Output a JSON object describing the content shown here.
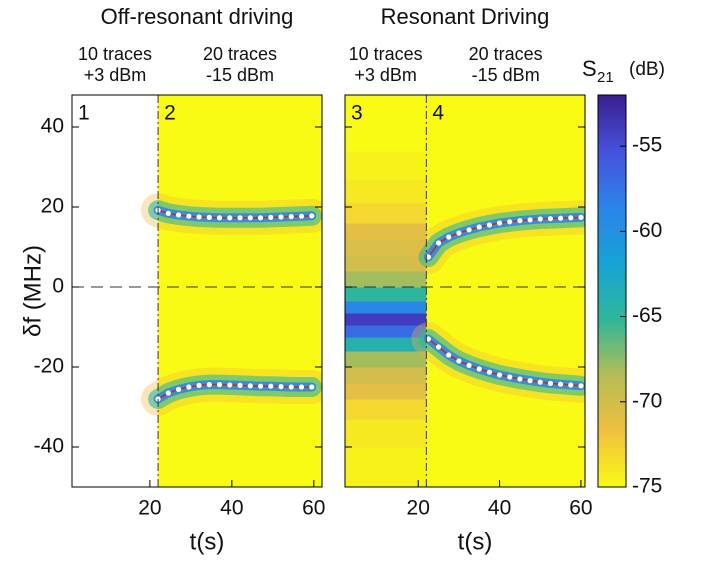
{
  "chart_data": [
    {
      "type": "heatmap",
      "title": "Off-resonant driving",
      "xlabel": "t(s)",
      "ylabel": "δf (MHz)",
      "xlim": [
        1,
        62
      ],
      "xticks": [
        20,
        40,
        60
      ],
      "ylim": [
        -50,
        48
      ],
      "yticks": [
        -40,
        -20,
        0,
        20,
        40
      ],
      "divider_x": 22,
      "hline": 0,
      "segments": [
        {
          "lines": [
            "10 traces",
            "+3 dBm"
          ],
          "panel": "1",
          "filled": false
        },
        {
          "lines": [
            "20 traces",
            "-15 dBm"
          ],
          "panel": "2",
          "filled": true
        }
      ],
      "band_colors": [
        "#f2b83a",
        "#2eb79a",
        "#2c84ea"
      ],
      "line_color": "#c0283c",
      "dot_color": "#ffffff",
      "series": [
        {
          "x": [
            22,
            24.5,
            27,
            29.5,
            32,
            34.5,
            37,
            39.5,
            42,
            44.5,
            47,
            49.5,
            52,
            54.5,
            57,
            59.5
          ],
          "values": [
            19.2,
            18.4,
            18,
            17.7,
            17.5,
            17.4,
            17.3,
            17.3,
            17.3,
            17.3,
            17.3,
            17.4,
            17.5,
            17.6,
            17.7,
            17.8
          ]
        },
        {
          "x": [
            22,
            24.5,
            27,
            29.5,
            32,
            34.5,
            37,
            39.5,
            42,
            44.5,
            47,
            49.5,
            52,
            54.5,
            57,
            59.5
          ],
          "values": [
            -28,
            -26.5,
            -25.6,
            -25,
            -24.6,
            -24.4,
            -24.4,
            -24.5,
            -24.6,
            -24.7,
            -24.8,
            -24.8,
            -24.9,
            -25,
            -25,
            -25
          ]
        }
      ]
    },
    {
      "type": "heatmap",
      "title": "Resonant Driving",
      "xlabel": "t(s)",
      "xlim": [
        2,
        61
      ],
      "xticks": [
        20,
        40,
        60
      ],
      "ylim": [
        -50,
        48
      ],
      "yticks": [
        -40,
        -20,
        0,
        20,
        40
      ],
      "divider_x": 22,
      "hline": 0,
      "segments": [
        {
          "lines": [
            "10 traces",
            "+3 dBm"
          ],
          "panel": "3",
          "filled": true
        },
        {
          "lines": [
            "20 traces",
            "-15 dBm"
          ],
          "panel": "4",
          "filled": true
        }
      ],
      "profile": {
        "x": [
          2,
          22
        ],
        "y": [
          -44,
          -36,
          -30,
          -26,
          -22,
          -18,
          -14,
          -11,
          -8,
          -5,
          -2,
          2,
          6,
          10,
          14,
          18,
          24,
          30,
          38,
          44
        ],
        "values": [
          -74.5,
          -74,
          -73,
          -71,
          -70,
          -68,
          -64,
          -57,
          -54,
          -59,
          -65,
          -68,
          -70,
          -70.5,
          -71,
          -73,
          -74,
          -74.5,
          -75,
          -75
        ]
      },
      "band_colors": [
        "#f2b83a",
        "#2eb79a",
        "#2c84ea"
      ],
      "line_color": "#c0283c",
      "dot_color": "#ffffff",
      "series": [
        {
          "x": [
            22.5,
            25,
            27.5,
            30,
            32.5,
            35,
            37.5,
            40,
            42.5,
            45,
            47.5,
            50,
            52.5,
            55,
            57.5,
            60
          ],
          "values": [
            7.5,
            11,
            12.5,
            13.5,
            14.3,
            15,
            15.5,
            16,
            16.3,
            16.6,
            16.8,
            17,
            17.1,
            17.2,
            17.3,
            17.4
          ]
        },
        {
          "x": [
            22.5,
            25,
            27.5,
            30,
            32.5,
            35,
            37.5,
            40,
            42.5,
            45,
            47.5,
            50,
            52.5,
            55,
            57.5,
            60
          ],
          "values": [
            -13,
            -15,
            -17,
            -18.5,
            -19.6,
            -20.5,
            -21.3,
            -22,
            -22.5,
            -23,
            -23.4,
            -23.8,
            -24.1,
            -24.3,
            -24.5,
            -24.7
          ]
        }
      ]
    },
    {
      "type": "colorbar",
      "label": [
        "S",
        "21",
        "(dB)"
      ],
      "ylim": [
        -75,
        -52
      ],
      "yticks": [
        -75,
        -70,
        -65,
        -60,
        -55
      ],
      "colormap": [
        "#f9fb14",
        "#f0c040",
        "#b4bd55",
        "#2eb79a",
        "#16a3d6",
        "#2c84ea",
        "#4650dc",
        "#3a1f8f"
      ]
    }
  ]
}
